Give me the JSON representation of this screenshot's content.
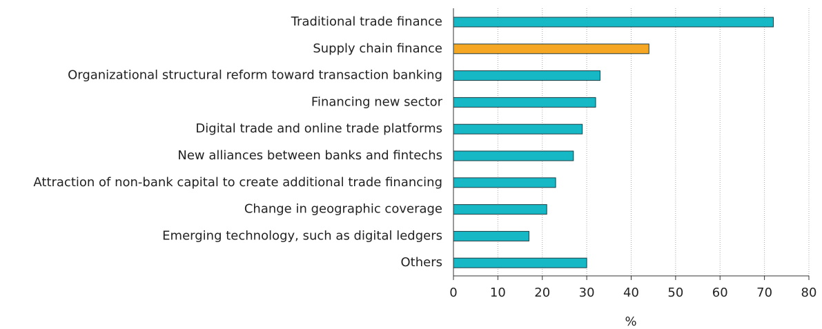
{
  "chart_data": {
    "type": "bar",
    "orientation": "horizontal",
    "categories": [
      "Traditional trade finance",
      "Supply chain finance",
      "Organizational structural reform toward transaction banking",
      "Financing new sector",
      "Digital trade and online trade platforms",
      "New alliances between banks and fintechs",
      "Attraction of non-bank capital to create additional trade financing",
      "Change in geographic coverage",
      "Emerging technology, such as digital ledgers",
      "Others"
    ],
    "values": [
      72,
      44,
      33,
      32,
      29,
      27,
      23,
      21,
      17,
      30
    ],
    "colors": [
      "#17b8c6",
      "#f5a623",
      "#17b8c6",
      "#17b8c6",
      "#17b8c6",
      "#17b8c6",
      "#17b8c6",
      "#17b8c6",
      "#17b8c6",
      "#17b8c6"
    ],
    "xlabel": "%",
    "xlim": [
      0,
      80
    ],
    "xticks": [
      0,
      10,
      20,
      30,
      40,
      50,
      60,
      70,
      80
    ],
    "grid": true
  }
}
